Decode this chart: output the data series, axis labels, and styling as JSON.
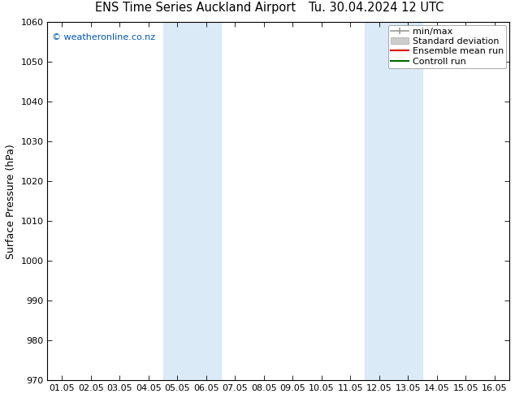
{
  "title_left": "ENS Time Series Auckland Airport",
  "title_right": "Tu. 30.04.2024 12 UTC",
  "ylabel": "Surface Pressure (hPa)",
  "ylim": [
    970,
    1060
  ],
  "yticks": [
    970,
    980,
    990,
    1000,
    1010,
    1020,
    1030,
    1040,
    1050,
    1060
  ],
  "xtick_labels": [
    "01.05",
    "02.05",
    "03.05",
    "04.05",
    "05.05",
    "06.05",
    "07.05",
    "08.05",
    "09.05",
    "10.05",
    "11.05",
    "12.05",
    "13.05",
    "14.05",
    "15.05",
    "16.05"
  ],
  "xtick_positions": [
    0,
    1,
    2,
    3,
    4,
    5,
    6,
    7,
    8,
    9,
    10,
    11,
    12,
    13,
    14,
    15
  ],
  "xlim": [
    -0.5,
    15.5
  ],
  "shade_bands": [
    {
      "x_start": 3.5,
      "x_end": 4.5
    },
    {
      "x_start": 4.5,
      "x_end": 5.5
    },
    {
      "x_start": 10.5,
      "x_end": 11.5
    },
    {
      "x_start": 11.5,
      "x_end": 12.5
    }
  ],
  "shade_color": "#daeaf7",
  "bg_color": "#ffffff",
  "copyright_text": "© weatheronline.co.nz",
  "copyright_color": "#0055bb",
  "legend_items": [
    {
      "label": "min/max",
      "color": "#999999",
      "type": "line"
    },
    {
      "label": "Standard deviation",
      "color": "#cccccc",
      "type": "fill"
    },
    {
      "label": "Ensemble mean run",
      "color": "#dd0000",
      "type": "line"
    },
    {
      "label": "Controll run",
      "color": "#006600",
      "type": "line"
    }
  ],
  "title_fontsize": 10.5,
  "ylabel_fontsize": 9,
  "tick_fontsize": 8,
  "legend_fontsize": 8,
  "copyright_fontsize": 8
}
